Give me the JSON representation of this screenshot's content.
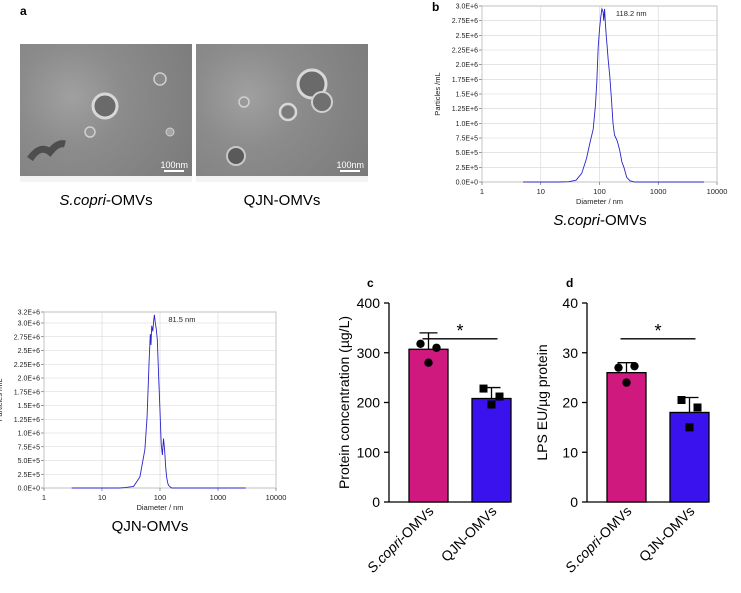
{
  "panels": {
    "a": "a",
    "b": "b",
    "c": "c",
    "d": "d"
  },
  "tem": {
    "left_scale": "100nm",
    "right_scale": "100nm",
    "left_caption_italic": "S.copri",
    "left_caption_rest": "-OMVs",
    "right_caption": "QJN-OMVs"
  },
  "chart_data": [
    {
      "id": "nta-scopri",
      "type": "line",
      "title": "",
      "caption_italic": "S.copri",
      "caption_rest": "-OMVs",
      "xlabel": "Diameter / nm",
      "ylabel": "Particles /mL",
      "xscale": "log",
      "xlim": [
        1,
        10000
      ],
      "ylim": [
        0,
        3000000
      ],
      "xticks": [
        "1",
        "10",
        "100",
        "1000",
        "10000"
      ],
      "yticks": [
        "0.0E+0",
        "2.5E+5",
        "5.0E+5",
        "7.5E+5",
        "1.0E+6",
        "1.25E+6",
        "1.5E+6",
        "1.75E+6",
        "2.0E+6",
        "2.25E+6",
        "2.5E+6",
        "2.75E+6",
        "3.0E+6"
      ],
      "annotation": "118.2 nm",
      "x": [
        5,
        20,
        30,
        40,
        50,
        60,
        70,
        78,
        85,
        90,
        95,
        100,
        105,
        110,
        115,
        118,
        122,
        126,
        130,
        135,
        140,
        150,
        160,
        170,
        180,
        190,
        200,
        220,
        240,
        260,
        290,
        330,
        400,
        600,
        1000,
        3000,
        6000
      ],
      "y": [
        0,
        0,
        5000,
        30000,
        150000,
        400000,
        700000,
        900000,
        1300000,
        1700000,
        2300000,
        2600000,
        2800000,
        2950000,
        2900000,
        2750000,
        2950000,
        2700000,
        2500000,
        2300000,
        2100000,
        1800000,
        1400000,
        1000000,
        800000,
        750000,
        700000,
        550000,
        350000,
        250000,
        80000,
        20000,
        0,
        0,
        0,
        0,
        0
      ]
    },
    {
      "id": "nta-qjn",
      "type": "line",
      "title": "",
      "caption": "QJN-OMVs",
      "xlabel": "Diameter / nm",
      "ylabel": "Particles /mL",
      "xscale": "log",
      "xlim": [
        1,
        10000
      ],
      "ylim": [
        0,
        3200000
      ],
      "xticks": [
        "1",
        "10",
        "100",
        "1000",
        "10000"
      ],
      "yticks": [
        "0.0E+0",
        "2.5E+5",
        "5.0E+5",
        "7.5E+5",
        "1.0E+6",
        "1.25E+6",
        "1.5E+6",
        "1.75E+6",
        "2.0E+6",
        "2.25E+6",
        "2.5E+6",
        "2.75E+6",
        "3.0E+6",
        "3.2E+6"
      ],
      "annotation": "81.5 nm",
      "x": [
        3,
        20,
        25,
        35,
        45,
        55,
        60,
        65,
        68,
        70,
        72,
        75,
        78,
        80,
        83,
        86,
        90,
        95,
        100,
        105,
        110,
        115,
        120,
        125,
        130,
        135,
        140,
        150,
        160,
        200,
        300,
        3000
      ],
      "y": [
        0,
        0,
        8000,
        30000,
        200000,
        700000,
        1300000,
        2300000,
        2800000,
        2600000,
        2950000,
        2850000,
        3050000,
        3150000,
        3000000,
        2900000,
        2700000,
        2000000,
        1400000,
        800000,
        600000,
        900000,
        700000,
        400000,
        200000,
        100000,
        50000,
        20000,
        0,
        0,
        0,
        0
      ]
    },
    {
      "id": "protein-conc",
      "type": "bar",
      "ylabel": "Protein concentration (µg/L)",
      "ylim": [
        0,
        400
      ],
      "yticks": [
        "0",
        "100",
        "200",
        "300",
        "400"
      ],
      "categories": [
        "S.copri-OMVs",
        "QJN-OMVs"
      ],
      "category_italic": [
        "S.copri",
        ""
      ],
      "category_rest": [
        "-OMVs",
        "QJN-OMVs"
      ],
      "values": [
        307,
        208
      ],
      "errors": [
        33,
        22
      ],
      "points": [
        [
          318,
          310,
          280
        ],
        [
          228,
          212,
          196
        ]
      ],
      "colors": [
        "#d0197f",
        "#3a12ee"
      ],
      "markers": [
        "circle",
        "square"
      ],
      "significance": "*"
    },
    {
      "id": "lps",
      "type": "bar",
      "ylabel": "LPS EU/µg protein",
      "ylim": [
        0,
        40
      ],
      "yticks": [
        "0",
        "10",
        "20",
        "30",
        "40"
      ],
      "categories": [
        "S.copri-OMVs",
        "QJN-OMVs"
      ],
      "category_italic": [
        "S.copri",
        ""
      ],
      "category_rest": [
        "-OMVs",
        "QJN-OMVs"
      ],
      "values": [
        26,
        18
      ],
      "errors": [
        2,
        3
      ],
      "points": [
        [
          27,
          27.3,
          24
        ],
        [
          20.5,
          19,
          15
        ]
      ],
      "colors": [
        "#d0197f",
        "#3a12ee"
      ],
      "markers": [
        "circle",
        "square"
      ],
      "significance": "*"
    }
  ]
}
